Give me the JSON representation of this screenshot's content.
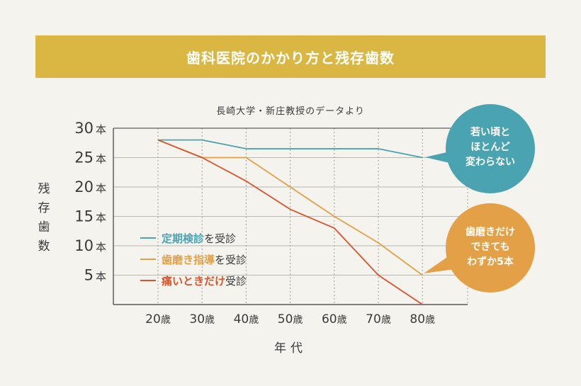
{
  "title": "歯科医院のかかり方と残存歯数",
  "source_note": "長崎大学・新庄教授のデータより",
  "colors": {
    "banner": "#d9b742",
    "regular_checkup": "#4aa3b0",
    "treatment_guidance": "#e3a046",
    "pain_only": "#d9532b"
  },
  "chart_data": {
    "type": "line",
    "xlabel": "年代",
    "ylabel": "残存歯数",
    "x": [
      "20歳",
      "30歳",
      "40歳",
      "50歳",
      "60歳",
      "70歳",
      "80歳"
    ],
    "y_ticks": [
      "5本",
      "10本",
      "15本",
      "20本",
      "25本",
      "30本"
    ],
    "y_tick_values": [
      5,
      10,
      15,
      20,
      25,
      30
    ],
    "ylim": [
      0,
      30
    ],
    "grid": true,
    "legend_position": "bottom-left",
    "series": [
      {
        "name": "定期検診を受診",
        "color": "#4aa3b0",
        "values": [
          28,
          28,
          26.5,
          26.5,
          26.5,
          26.5,
          25
        ]
      },
      {
        "name": "歯磨き指導を受診",
        "color": "#e3a046",
        "values": [
          28,
          25,
          25,
          20,
          15,
          10.5,
          5
        ]
      },
      {
        "name": "痛いときだけ受診",
        "color": "#d9532b",
        "values": [
          28,
          25,
          21,
          16.2,
          13,
          5,
          0
        ]
      }
    ],
    "legend": [
      {
        "highlight": "定期検診",
        "suffix": "を受診"
      },
      {
        "highlight": "歯磨き指導",
        "suffix": "を受診"
      },
      {
        "highlight": "痛いときだけ",
        "suffix": "受診"
      }
    ]
  },
  "callouts": {
    "top": {
      "lines": [
        "若い頃と",
        "ほとんど",
        "変わらない"
      ],
      "color": "#4aa3b0"
    },
    "bottom": {
      "lines": [
        "歯磨きだけ",
        "できても",
        "わずか5本"
      ],
      "color": "#e3a046"
    }
  }
}
